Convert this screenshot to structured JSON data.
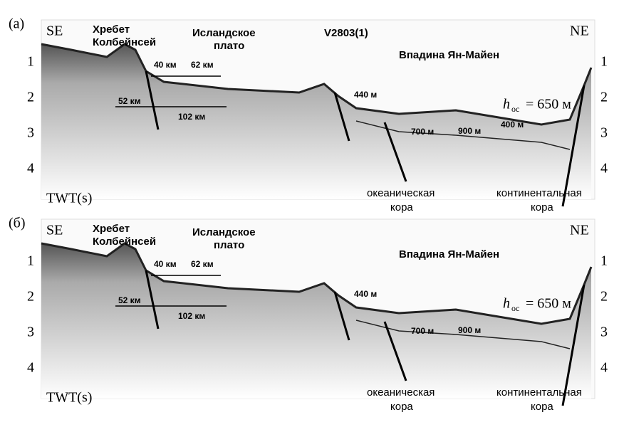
{
  "panels": [
    {
      "label": "(a)",
      "left": "SE",
      "right": "NE",
      "ticks": [
        1,
        2,
        3,
        4
      ],
      "axis_label": "TWT(s)",
      "texts": {
        "ridge1": "Хребет",
        "ridge2": "Колбейнсей",
        "plateau1": "Исландское",
        "plateau2": "плато",
        "profile": "V2803(1)",
        "basin": "Впадина Ян-Майен",
        "d40": "40 км",
        "d62": "62 км",
        "d52": "52 км",
        "d102": "102 км",
        "m440": "440 м",
        "m700": "700 м",
        "m900": "900 м",
        "m400": "400 м",
        "h": "h",
        "hsub": "oc",
        "hval": "= 650 м",
        "ocean1": "океаническая",
        "ocean2": "кора",
        "cont1": "континентальная",
        "cont2": "кора"
      }
    },
    {
      "label": "(б)",
      "left": "SE",
      "right": "NE",
      "ticks": [
        1,
        2,
        3,
        4
      ],
      "axis_label": "TWT(s)",
      "texts": {
        "ridge1": "Хребет",
        "ridge2": "Колбейнсей",
        "plateau1": "Исландское",
        "plateau2": "плато",
        "basin": "Впадина Ян-Майен",
        "d40": "40 км",
        "d62": "62 км",
        "d52": "52 км",
        "d102": "102 км",
        "m440": "440 м",
        "m700": "700 м",
        "m900": "900 м",
        "h": "h",
        "hsub": "oc",
        "hval": "= 650 м",
        "ocean1": "океаническая",
        "ocean2": "кора",
        "cont1": "континентальная",
        "cont2": "кора"
      }
    }
  ]
}
